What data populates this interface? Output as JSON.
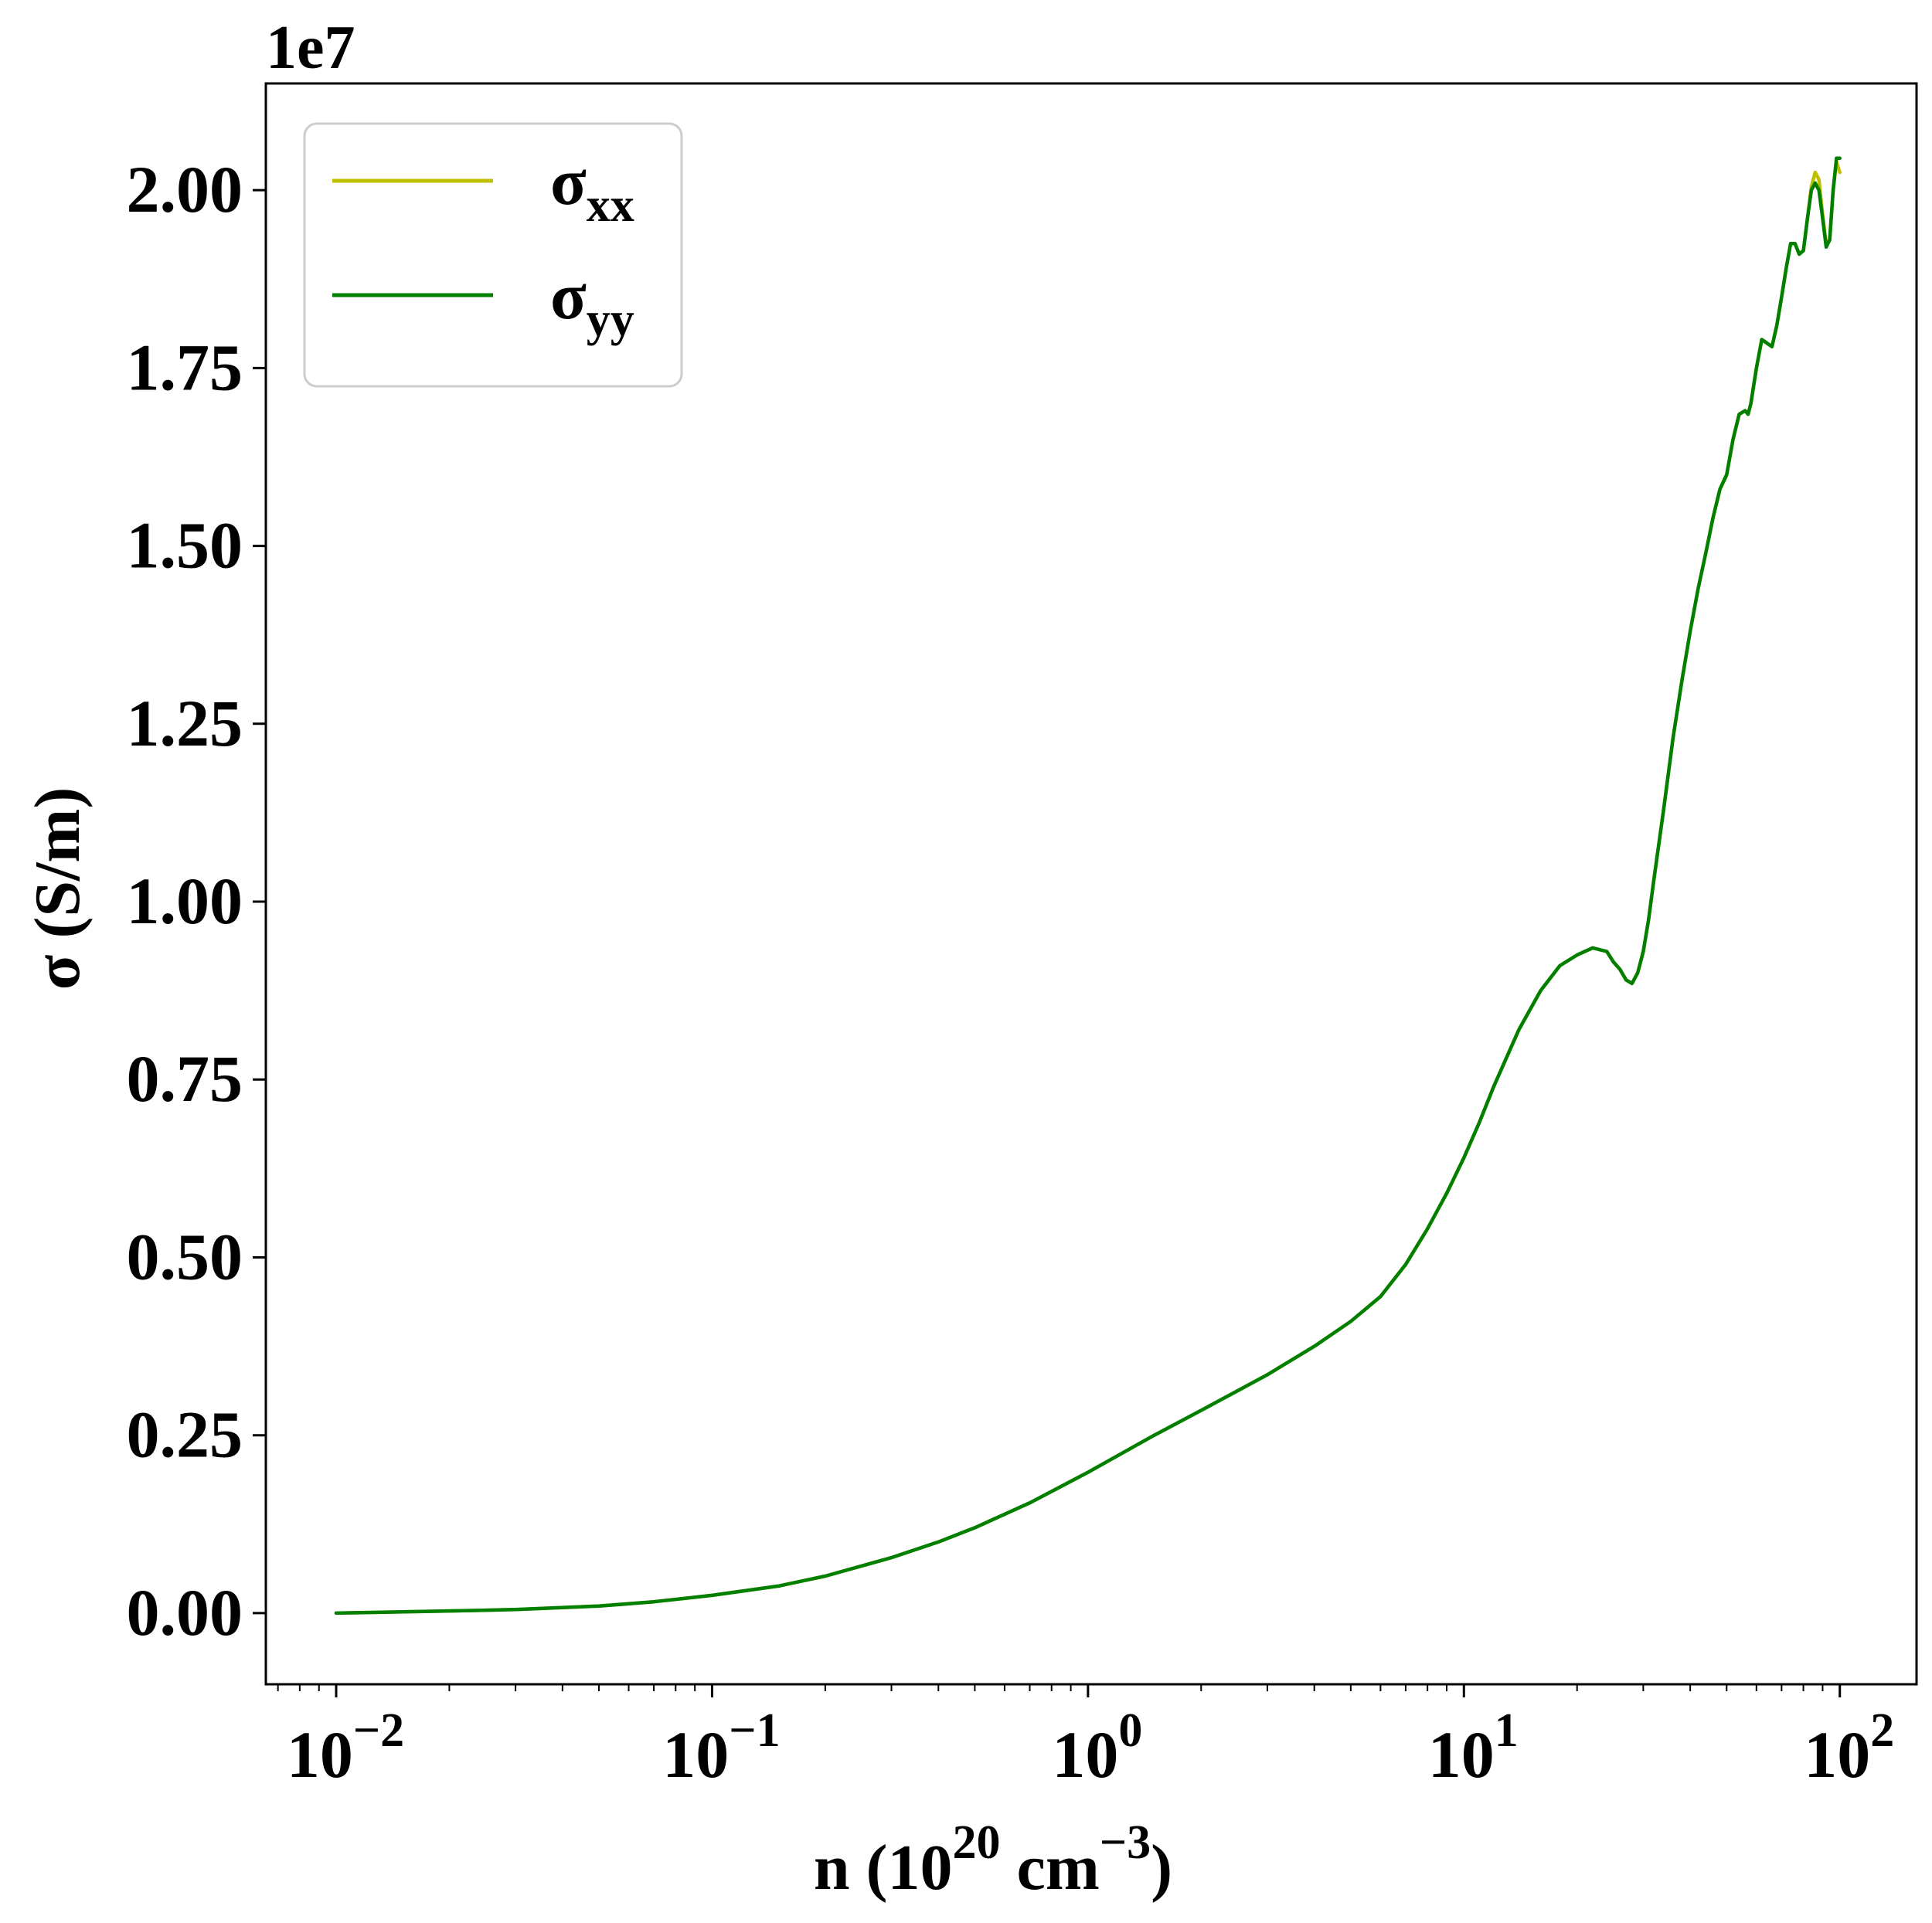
{
  "chart_data": {
    "type": "line",
    "xlabel": {
      "base": "n (10",
      "sup1": "20",
      "mid": " cm",
      "sup2": "−3",
      "end": ")"
    },
    "ylabel": "σ (S/m)",
    "y_offset_label": "1e7",
    "x_scale": "log",
    "xlim": [
      0.0065,
      160
    ],
    "ylim": [
      -0.1,
      2.15
    ],
    "x_ticks": [
      {
        "value": 0.01,
        "base": "10",
        "exp": "−2"
      },
      {
        "value": 0.1,
        "base": "10",
        "exp": "−1"
      },
      {
        "value": 1,
        "base": "10",
        "exp": "0"
      },
      {
        "value": 10,
        "base": "10",
        "exp": "1"
      },
      {
        "value": 100,
        "base": "10",
        "exp": "2"
      }
    ],
    "y_ticks": [
      {
        "value": 0.0,
        "label": "0.00"
      },
      {
        "value": 0.25,
        "label": "0.25"
      },
      {
        "value": 0.5,
        "label": "0.50"
      },
      {
        "value": 0.75,
        "label": "0.75"
      },
      {
        "value": 1.0,
        "label": "1.00"
      },
      {
        "value": 1.25,
        "label": "1.25"
      },
      {
        "value": 1.5,
        "label": "1.50"
      },
      {
        "value": 1.75,
        "label": "1.75"
      },
      {
        "value": 2.0,
        "label": "2.00"
      }
    ],
    "grid": false,
    "legend_position": "top-left",
    "series": [
      {
        "name": {
          "base": "σ",
          "sub": "xx"
        },
        "color": "#bfbf00",
        "points": [
          [
            0.01,
            0.0
          ],
          [
            0.02,
            0.003
          ],
          [
            0.03,
            0.005
          ],
          [
            0.05,
            0.01
          ],
          [
            0.07,
            0.016
          ],
          [
            0.1,
            0.025
          ],
          [
            0.15,
            0.038
          ],
          [
            0.2,
            0.052
          ],
          [
            0.3,
            0.078
          ],
          [
            0.4,
            0.1
          ],
          [
            0.5,
            0.12
          ],
          [
            0.7,
            0.155
          ],
          [
            1.0,
            0.198
          ],
          [
            1.5,
            0.25
          ],
          [
            2.0,
            0.285
          ],
          [
            3.0,
            0.335
          ],
          [
            4.0,
            0.375
          ],
          [
            5.0,
            0.41
          ],
          [
            6.0,
            0.445
          ],
          [
            7.0,
            0.49
          ],
          [
            8.0,
            0.54
          ],
          [
            9.0,
            0.59
          ],
          [
            10.0,
            0.64
          ],
          [
            11.0,
            0.69
          ],
          [
            12.0,
            0.74
          ],
          [
            14.0,
            0.82
          ],
          [
            16.0,
            0.875
          ],
          [
            18.0,
            0.91
          ],
          [
            20.0,
            0.925
          ],
          [
            22.0,
            0.935
          ],
          [
            24.0,
            0.93
          ],
          [
            25.0,
            0.915
          ],
          [
            26.0,
            0.905
          ],
          [
            27.0,
            0.89
          ],
          [
            28.0,
            0.885
          ],
          [
            29.0,
            0.9
          ],
          [
            30.0,
            0.93
          ],
          [
            31.0,
            0.975
          ],
          [
            32.0,
            1.03
          ],
          [
            34.0,
            1.13
          ],
          [
            36.0,
            1.23
          ],
          [
            38.0,
            1.31
          ],
          [
            40.0,
            1.38
          ],
          [
            42.0,
            1.44
          ],
          [
            44.0,
            1.49
          ],
          [
            46.0,
            1.54
          ],
          [
            48.0,
            1.58
          ],
          [
            50.0,
            1.6
          ],
          [
            52.0,
            1.65
          ],
          [
            54.0,
            1.685
          ],
          [
            56.0,
            1.69
          ],
          [
            57.0,
            1.685
          ],
          [
            58.0,
            1.7
          ],
          [
            60.0,
            1.75
          ],
          [
            62.0,
            1.79
          ],
          [
            64.0,
            1.785
          ],
          [
            66.0,
            1.78
          ],
          [
            68.0,
            1.81
          ],
          [
            70.0,
            1.85
          ],
          [
            72.0,
            1.89
          ],
          [
            74.0,
            1.925
          ],
          [
            76.0,
            1.925
          ],
          [
            78.0,
            1.91
          ],
          [
            80.0,
            1.915
          ],
          [
            82.0,
            1.96
          ],
          [
            84.0,
            2.005
          ],
          [
            86.0,
            2.025
          ],
          [
            88.0,
            2.015
          ],
          [
            90.0,
            1.965
          ],
          [
            92.0,
            1.925
          ],
          [
            94.0,
            1.93
          ],
          [
            96.0,
            2.0
          ],
          [
            98.0,
            2.04
          ],
          [
            100.0,
            2.025
          ]
        ]
      },
      {
        "name": {
          "base": "σ",
          "sub": "yy"
        },
        "color": "#007f00",
        "points": [
          [
            0.01,
            0.0
          ],
          [
            0.02,
            0.003
          ],
          [
            0.03,
            0.005
          ],
          [
            0.05,
            0.01
          ],
          [
            0.07,
            0.016
          ],
          [
            0.1,
            0.025
          ],
          [
            0.15,
            0.038
          ],
          [
            0.2,
            0.052
          ],
          [
            0.3,
            0.078
          ],
          [
            0.4,
            0.1
          ],
          [
            0.5,
            0.12
          ],
          [
            0.7,
            0.155
          ],
          [
            1.0,
            0.198
          ],
          [
            1.5,
            0.25
          ],
          [
            2.0,
            0.285
          ],
          [
            3.0,
            0.335
          ],
          [
            4.0,
            0.375
          ],
          [
            5.0,
            0.41
          ],
          [
            6.0,
            0.445
          ],
          [
            7.0,
            0.49
          ],
          [
            8.0,
            0.54
          ],
          [
            9.0,
            0.59
          ],
          [
            10.0,
            0.64
          ],
          [
            11.0,
            0.69
          ],
          [
            12.0,
            0.74
          ],
          [
            14.0,
            0.82
          ],
          [
            16.0,
            0.875
          ],
          [
            18.0,
            0.91
          ],
          [
            20.0,
            0.925
          ],
          [
            22.0,
            0.935
          ],
          [
            24.0,
            0.93
          ],
          [
            25.0,
            0.915
          ],
          [
            26.0,
            0.905
          ],
          [
            27.0,
            0.89
          ],
          [
            28.0,
            0.885
          ],
          [
            29.0,
            0.9
          ],
          [
            30.0,
            0.93
          ],
          [
            31.0,
            0.975
          ],
          [
            32.0,
            1.03
          ],
          [
            34.0,
            1.13
          ],
          [
            36.0,
            1.23
          ],
          [
            38.0,
            1.31
          ],
          [
            40.0,
            1.38
          ],
          [
            42.0,
            1.44
          ],
          [
            44.0,
            1.49
          ],
          [
            46.0,
            1.54
          ],
          [
            48.0,
            1.58
          ],
          [
            50.0,
            1.6
          ],
          [
            52.0,
            1.65
          ],
          [
            54.0,
            1.685
          ],
          [
            56.0,
            1.69
          ],
          [
            57.0,
            1.685
          ],
          [
            58.0,
            1.7
          ],
          [
            60.0,
            1.75
          ],
          [
            62.0,
            1.79
          ],
          [
            64.0,
            1.785
          ],
          [
            66.0,
            1.78
          ],
          [
            68.0,
            1.81
          ],
          [
            70.0,
            1.85
          ],
          [
            72.0,
            1.89
          ],
          [
            74.0,
            1.925
          ],
          [
            76.0,
            1.925
          ],
          [
            78.0,
            1.91
          ],
          [
            80.0,
            1.915
          ],
          [
            82.0,
            1.96
          ],
          [
            84.0,
            2.0
          ],
          [
            86.0,
            2.01
          ],
          [
            88.0,
            2.0
          ],
          [
            90.0,
            1.96
          ],
          [
            92.0,
            1.92
          ],
          [
            94.0,
            1.93
          ],
          [
            96.0,
            2.0
          ],
          [
            98.0,
            2.045
          ],
          [
            100.0,
            2.045
          ]
        ]
      }
    ]
  }
}
